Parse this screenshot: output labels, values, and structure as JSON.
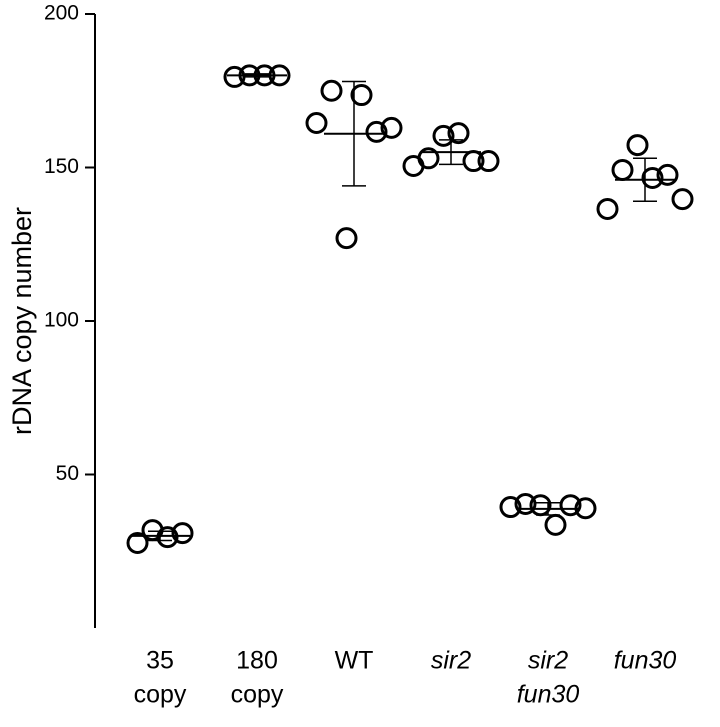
{
  "chart_data": {
    "type": "dot",
    "y_label": "rDNA copy number",
    "categories": [
      [
        "35",
        "copy"
      ],
      [
        "180",
        "copy"
      ],
      [
        "WT"
      ],
      [
        "sir2"
      ],
      [
        "sir2",
        "fun30"
      ],
      [
        "fun30"
      ]
    ],
    "italic": [
      false,
      false,
      false,
      true,
      true,
      true
    ],
    "values": [
      [
        27.7,
        31.9,
        29.6,
        30.9
      ],
      [
        179.5,
        180,
        180,
        180
      ],
      [
        164.5,
        175,
        127,
        173.6,
        161.6,
        162.9
      ],
      [
        150.5,
        153,
        160.3,
        161.2,
        152.1,
        152.1
      ],
      [
        39.4,
        40.4,
        40,
        33.6,
        40,
        39
      ],
      [
        136.5,
        149.2,
        157.3,
        146.6,
        147.6,
        139.7
      ]
    ],
    "means": [
      30,
      180,
      161,
      155,
      38.8,
      146
    ],
    "errors": [
      1.5,
      0.5,
      17,
      4,
      2,
      7
    ],
    "color": "#000000",
    "ylim": [
      0,
      200
    ],
    "yticks": [
      50,
      100,
      150,
      200
    ]
  }
}
